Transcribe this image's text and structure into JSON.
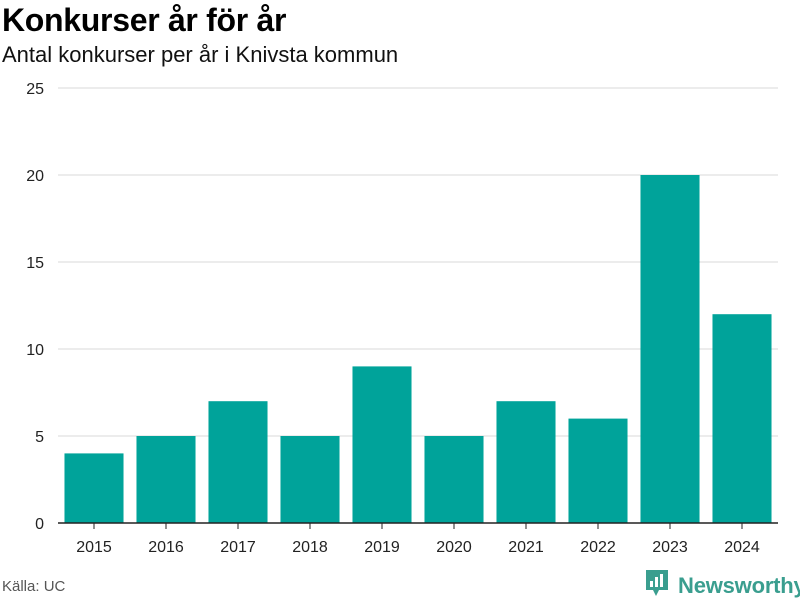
{
  "title": "Konkurser år för år",
  "subtitle": "Antal konkurser per år i Knivsta kommun",
  "source": "Källa: UC",
  "brand": "Newsworthy",
  "colors": {
    "bar": "#00a39a",
    "grid": "#d9d9d9",
    "axis": "#222222",
    "brand": "#3a9e8f"
  },
  "chart_data": {
    "type": "bar",
    "categories": [
      "2015",
      "2016",
      "2017",
      "2018",
      "2019",
      "2020",
      "2021",
      "2022",
      "2023",
      "2024"
    ],
    "values": [
      4,
      5,
      7,
      5,
      9,
      5,
      7,
      6,
      20,
      12
    ],
    "ylim": [
      0,
      25
    ],
    "yticks": [
      0,
      5,
      10,
      15,
      20,
      25
    ],
    "grid": true,
    "legend": "none"
  }
}
